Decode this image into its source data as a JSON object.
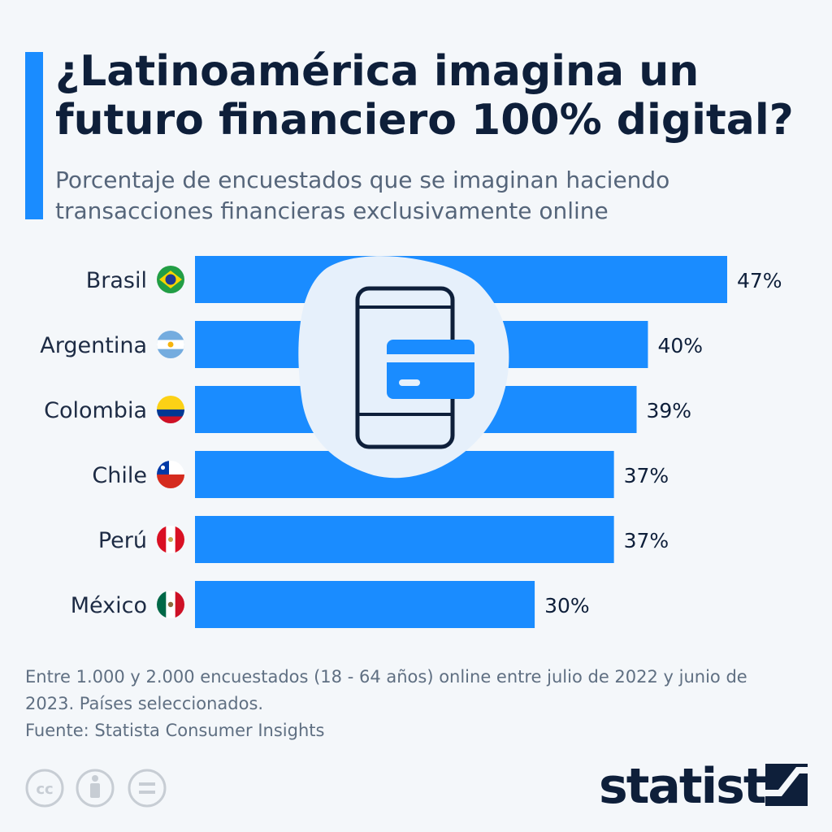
{
  "chart_data": {
    "type": "bar",
    "orientation": "horizontal",
    "title": "¿Latinoamérica imagina un futuro financiero 100% digital?",
    "subtitle": "Porcentaje de encuestados que se imaginan haciendo transacciones financieras exclusivamente online",
    "categories": [
      "Brasil",
      "Argentina",
      "Colombia",
      "Chile",
      "Perú",
      "México"
    ],
    "values": [
      47,
      40,
      39,
      37,
      37,
      30
    ],
    "value_suffix": "%",
    "xlim": [
      0,
      50
    ],
    "bar_color": "#1a8cff",
    "flags": [
      "brazil-flag-icon",
      "argentina-flag-icon",
      "colombia-flag-icon",
      "chile-flag-icon",
      "peru-flag-icon",
      "mexico-flag-icon"
    ],
    "legend": "none",
    "grid": false
  },
  "header": {
    "title": "¿Latinoamérica imagina un futuro financiero 100% digital?",
    "subtitle": "Porcentaje de encuestados que se imaginan haciendo transacciones financieras exclusivamente online"
  },
  "footer": {
    "note": "Entre 1.000 y 2.000 encuestados (18 - 64 años) online entre julio de 2022 y junio de 2023. Países seleccionados.",
    "source": "Fuente: Statista Consumer Insights",
    "brand": "statista",
    "license_icons": [
      "cc-icon",
      "by-icon",
      "nd-icon"
    ]
  },
  "colors": {
    "accent": "#1a8cff",
    "navy": "#0e1f3a",
    "background": "#f4f7fa"
  }
}
